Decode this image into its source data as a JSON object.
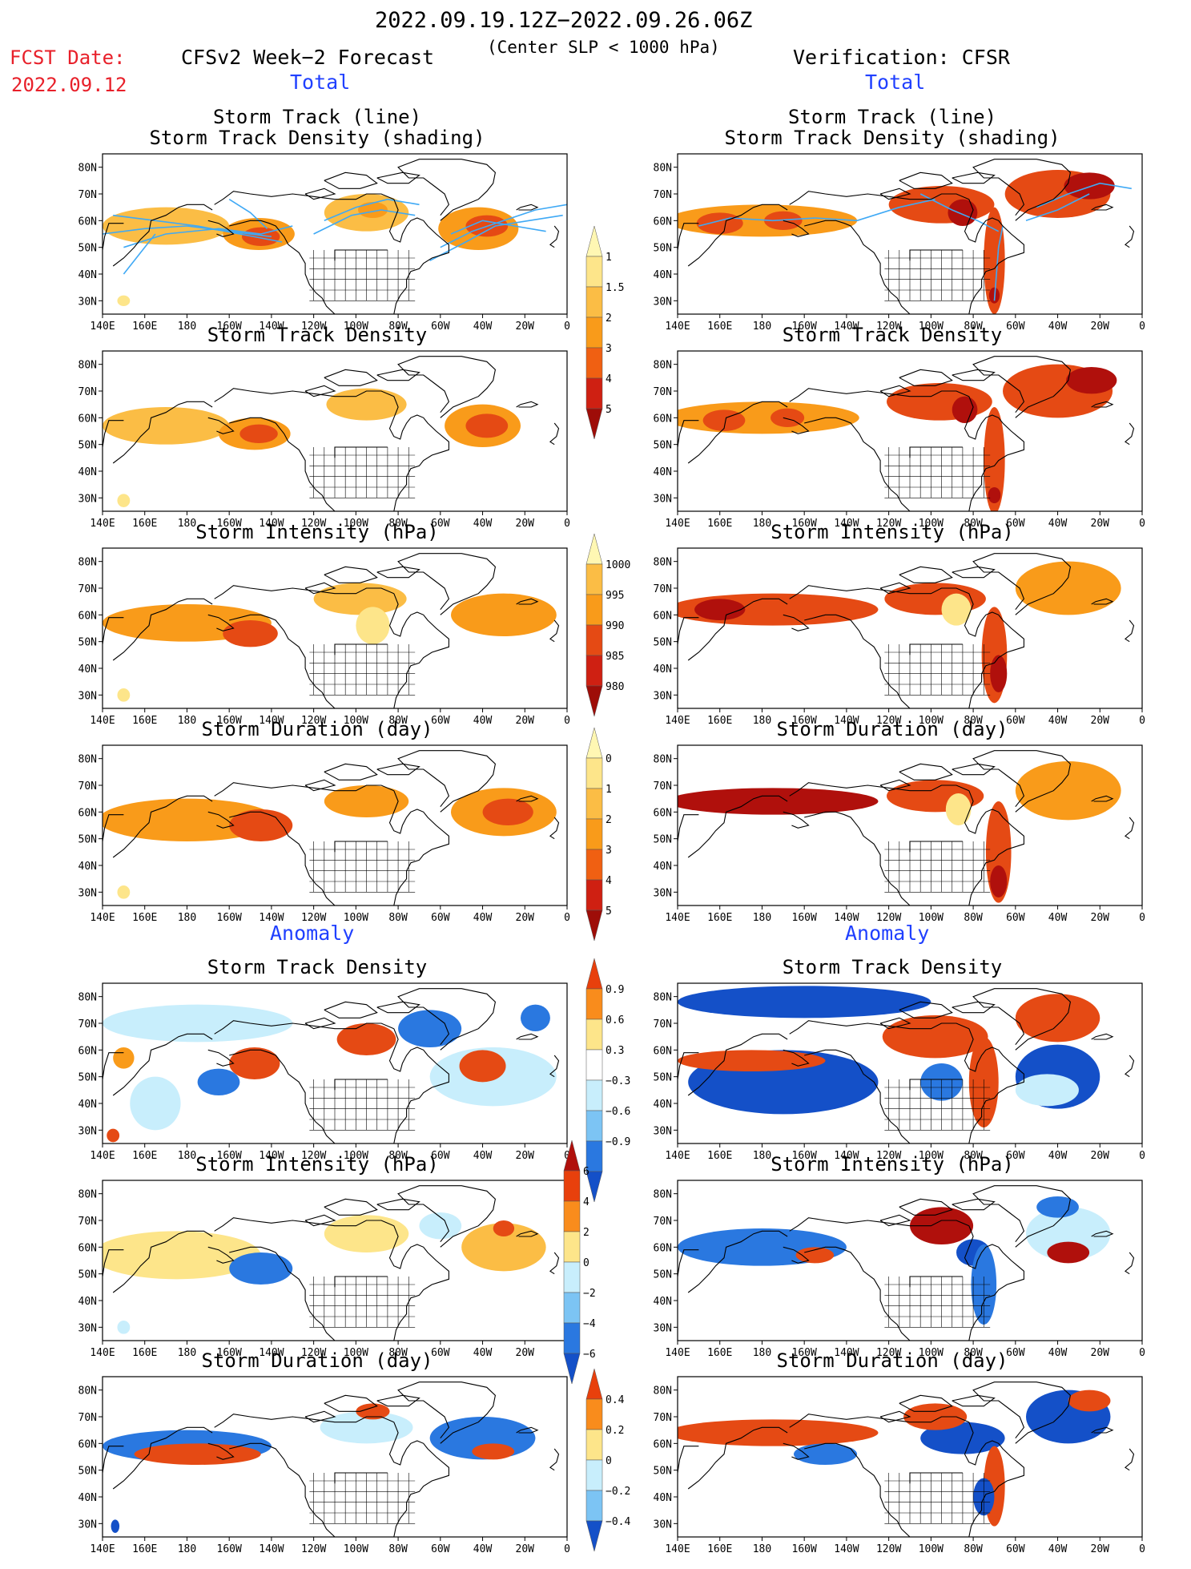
{
  "header": {
    "period": "2022.09.19.12Z−2022.09.26.06Z",
    "criterion": "(Center SLP < 1000 hPa)",
    "fcst_date_label": "FCST Date:",
    "fcst_date_value": "2022.09.12",
    "left_title": "CFSv2 Week−2 Forecast",
    "right_title": "Verification: CFSR",
    "total_label": "Total",
    "anomaly_label": "Anomaly"
  },
  "titles": {
    "track_line": "Storm Track (line)",
    "track_shading": "Storm Track Density (shading)",
    "density": "Storm Track Density",
    "intensity": "Storm Intensity (hPa)",
    "duration": "Storm Duration (day)"
  },
  "axes": {
    "lon_labels": [
      "140E",
      "160E",
      "180",
      "160W",
      "140W",
      "120W",
      "100W",
      "80W",
      "60W",
      "40W",
      "20W",
      "0"
    ],
    "lat_labels": [
      "80N",
      "70N",
      "60N",
      "50N",
      "40N",
      "30N"
    ],
    "lon_range": [
      140,
      360
    ],
    "lat_range": [
      25,
      85
    ]
  },
  "colorbars": {
    "total_density": {
      "labels": [
        "1",
        "1.5",
        "2",
        "3",
        "4",
        "5"
      ],
      "colors": [
        "#fff7b3",
        "#fde58a",
        "#fbbd45",
        "#f99b1a",
        "#f06012",
        "#cf2012",
        "#9e0d08"
      ]
    },
    "total_intensity": {
      "labels": [
        "1000",
        "995",
        "990",
        "985",
        "980"
      ],
      "colors": [
        "#fff7b3",
        "#fbbd45",
        "#f99b1a",
        "#e54a14",
        "#cf2012",
        "#9e0d08"
      ]
    },
    "total_duration": {
      "labels": [
        "0",
        "1",
        "2",
        "3",
        "4",
        "5"
      ],
      "colors": [
        "#fff7b3",
        "#fde58a",
        "#fbbd45",
        "#f99b1a",
        "#f06012",
        "#cf2012",
        "#9e0d08"
      ]
    },
    "anom_density": {
      "labels": [
        "0.9",
        "0.6",
        "0.3",
        "−0.3",
        "−0.6",
        "−0.9"
      ],
      "colors": [
        "#e8400c",
        "#f98c1c",
        "#fde58a",
        "#ffffff",
        "#c8eefc",
        "#7cc4f4",
        "#2a78e0",
        "#1450c8"
      ]
    },
    "anom_intensity": {
      "labels": [
        "6",
        "4",
        "2",
        "0",
        "−2",
        "−4",
        "−6"
      ],
      "colors": [
        "#b0100c",
        "#e8400c",
        "#f98c1c",
        "#fde58a",
        "#c8eefc",
        "#7cc4f4",
        "#2a78e0",
        "#1450c8"
      ]
    },
    "anom_duration": {
      "labels": [
        "0.4",
        "0.2",
        "0",
        "−0.2",
        "−0.4"
      ],
      "colors": [
        "#e8400c",
        "#f98c1c",
        "#fde58a",
        "#c8eefc",
        "#7cc4f4",
        "#1450c8"
      ]
    }
  },
  "map_colors": {
    "d1": "#fde58a",
    "d2": "#fbbd45",
    "d3": "#f99b1a",
    "d4": "#e54a14",
    "d5": "#b0100c",
    "b1": "#c8eefc",
    "b2": "#7cc4f4",
    "b3": "#2a78e0",
    "b4": "#1450c8",
    "track": "#3fa9f5",
    "coast": "#000000"
  }
}
